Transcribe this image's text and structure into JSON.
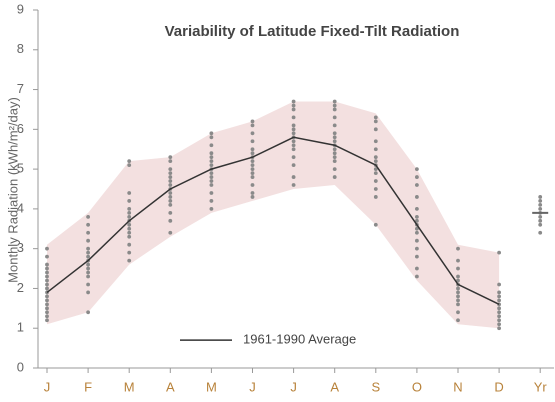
{
  "chart_data": {
    "type": "line",
    "title": "Variability of Latitude Fixed-Tilt Radiation",
    "y_label": "Monthly Radiation (kWh/m²/day)",
    "categories": [
      "J",
      "F",
      "M",
      "A",
      "M",
      "J",
      "J",
      "A",
      "S",
      "O",
      "N",
      "D",
      "Yr"
    ],
    "series": [
      {
        "name": "1961-1990 Average",
        "color": "#333333",
        "values": [
          1.9,
          2.7,
          3.7,
          4.5,
          5.0,
          5.3,
          5.8,
          5.6,
          5.1,
          3.6,
          2.1,
          1.6,
          null
        ]
      }
    ],
    "annual_average": 3.9,
    "band_low": [
      1.1,
      1.4,
      2.6,
      3.3,
      3.9,
      4.2,
      4.5,
      4.6,
      3.6,
      2.2,
      1.1,
      1.0,
      null
    ],
    "band_high": [
      3.1,
      3.9,
      5.2,
      5.3,
      5.9,
      6.2,
      6.7,
      6.7,
      6.4,
      5.0,
      3.1,
      2.9,
      null
    ],
    "band_color": "#f3e0e0",
    "dot_color": "#8a8a8a",
    "dots": [
      [
        1.2,
        1.3,
        1.4,
        1.5,
        1.6,
        1.7,
        1.8,
        1.9,
        2.0,
        2.1,
        2.2,
        2.3,
        2.4,
        2.5,
        2.6,
        2.8,
        3.0
      ],
      [
        1.4,
        1.9,
        2.1,
        2.3,
        2.4,
        2.5,
        2.6,
        2.7,
        2.8,
        2.9,
        3.0,
        3.2,
        3.4,
        3.6,
        3.8
      ],
      [
        2.7,
        2.9,
        3.1,
        3.3,
        3.4,
        3.5,
        3.6,
        3.7,
        3.8,
        3.9,
        4.0,
        4.2,
        4.4,
        5.1,
        5.2
      ],
      [
        3.4,
        3.7,
        3.9,
        4.1,
        4.2,
        4.3,
        4.4,
        4.5,
        4.6,
        4.7,
        4.8,
        4.9,
        5.0,
        5.2,
        5.3
      ],
      [
        4.0,
        4.2,
        4.4,
        4.6,
        4.7,
        4.8,
        4.9,
        5.0,
        5.1,
        5.2,
        5.3,
        5.4,
        5.6,
        5.8,
        5.9
      ],
      [
        4.3,
        4.4,
        4.6,
        4.8,
        4.9,
        5.0,
        5.1,
        5.2,
        5.3,
        5.4,
        5.5,
        5.7,
        5.9,
        6.1,
        6.2
      ],
      [
        4.6,
        4.8,
        5.1,
        5.3,
        5.5,
        5.6,
        5.7,
        5.8,
        5.9,
        6.0,
        6.1,
        6.3,
        6.5,
        6.6,
        6.7
      ],
      [
        4.8,
        5.0,
        5.2,
        5.3,
        5.4,
        5.5,
        5.6,
        5.7,
        5.8,
        5.9,
        6.1,
        6.3,
        6.5,
        6.6,
        6.7
      ],
      [
        3.6,
        4.3,
        4.5,
        4.7,
        4.9,
        5.0,
        5.1,
        5.2,
        5.3,
        5.5,
        5.7,
        6.0,
        6.2,
        6.3
      ],
      [
        2.3,
        2.5,
        2.8,
        3.0,
        3.2,
        3.4,
        3.5,
        3.6,
        3.7,
        3.8,
        4.0,
        4.3,
        4.6,
        4.8,
        5.0
      ],
      [
        1.2,
        1.4,
        1.6,
        1.7,
        1.8,
        1.9,
        2.0,
        2.1,
        2.2,
        2.3,
        2.5,
        2.7,
        3.0
      ],
      [
        1.0,
        1.1,
        1.2,
        1.3,
        1.4,
        1.5,
        1.6,
        1.7,
        1.8,
        1.9,
        2.1,
        2.9
      ],
      [
        3.4,
        3.6,
        3.7,
        3.8,
        3.9,
        4.0,
        4.1,
        4.2,
        4.3
      ]
    ],
    "ylim": [
      0,
      9
    ],
    "yticks": [
      0,
      1,
      2,
      3,
      4,
      5,
      6,
      7,
      8,
      9
    ]
  }
}
